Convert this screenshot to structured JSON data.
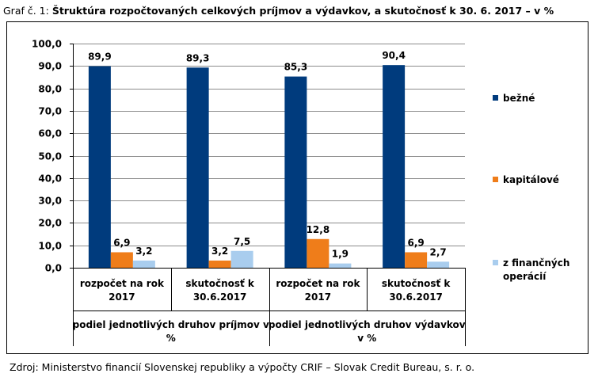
{
  "caption": {
    "prefix": "Graf č. 1: ",
    "title": "Štruktúra rozpočtovaných celkových príjmov a výdavkov, a skutočnosť k 30. 6. 2017 – v %"
  },
  "source": "Zdroj: Ministerstvo financií Slovenskej republiky a výpočty CRIF – Slovak Credit Bureau, s. r. o.",
  "chart_data": {
    "type": "bar",
    "title": "Štruktúra rozpočtovaných celkových príjmov a výdavkov, a skutočnosť k 30. 6. 2017 – v %",
    "ylim": [
      0,
      100
    ],
    "yticks": [
      "0,0",
      "10,0",
      "20,0",
      "30,0",
      "40,0",
      "50,0",
      "60,0",
      "70,0",
      "80,0",
      "90,0",
      "100,0"
    ],
    "grid": true,
    "legend_position": "right",
    "categories": [
      [
        "rozpočet na rok",
        "2017"
      ],
      [
        "skutočnosť k",
        "30.6.2017"
      ],
      [
        "rozpočet na rok",
        "2017"
      ],
      [
        "skutočnosť k",
        "30.6.2017"
      ]
    ],
    "groups": [
      {
        "lines": [
          "podiel jednotlivých druhov príjmov v",
          "%"
        ]
      },
      {
        "lines": [
          "podiel jednotlivých druhov výdavkov",
          "v %"
        ]
      }
    ],
    "series": [
      {
        "name": "bežné",
        "color": "#003b7d",
        "values": [
          89.9,
          89.3,
          85.3,
          90.4
        ],
        "labels": [
          "89,9",
          "89,3",
          "85,3",
          "90,4"
        ]
      },
      {
        "name": "kapitálové",
        "color": "#ef7d1a",
        "values": [
          6.9,
          3.2,
          12.8,
          6.9
        ],
        "labels": [
          "6,9",
          "3,2",
          "12,8",
          "6,9"
        ]
      },
      {
        "name_lines": [
          "z finančných",
          "operácií"
        ],
        "color": "#a9cdee",
        "values": [
          3.2,
          7.5,
          1.9,
          2.7
        ],
        "labels": [
          "3,2",
          "7,5",
          "1,9",
          "2,7"
        ]
      }
    ]
  }
}
